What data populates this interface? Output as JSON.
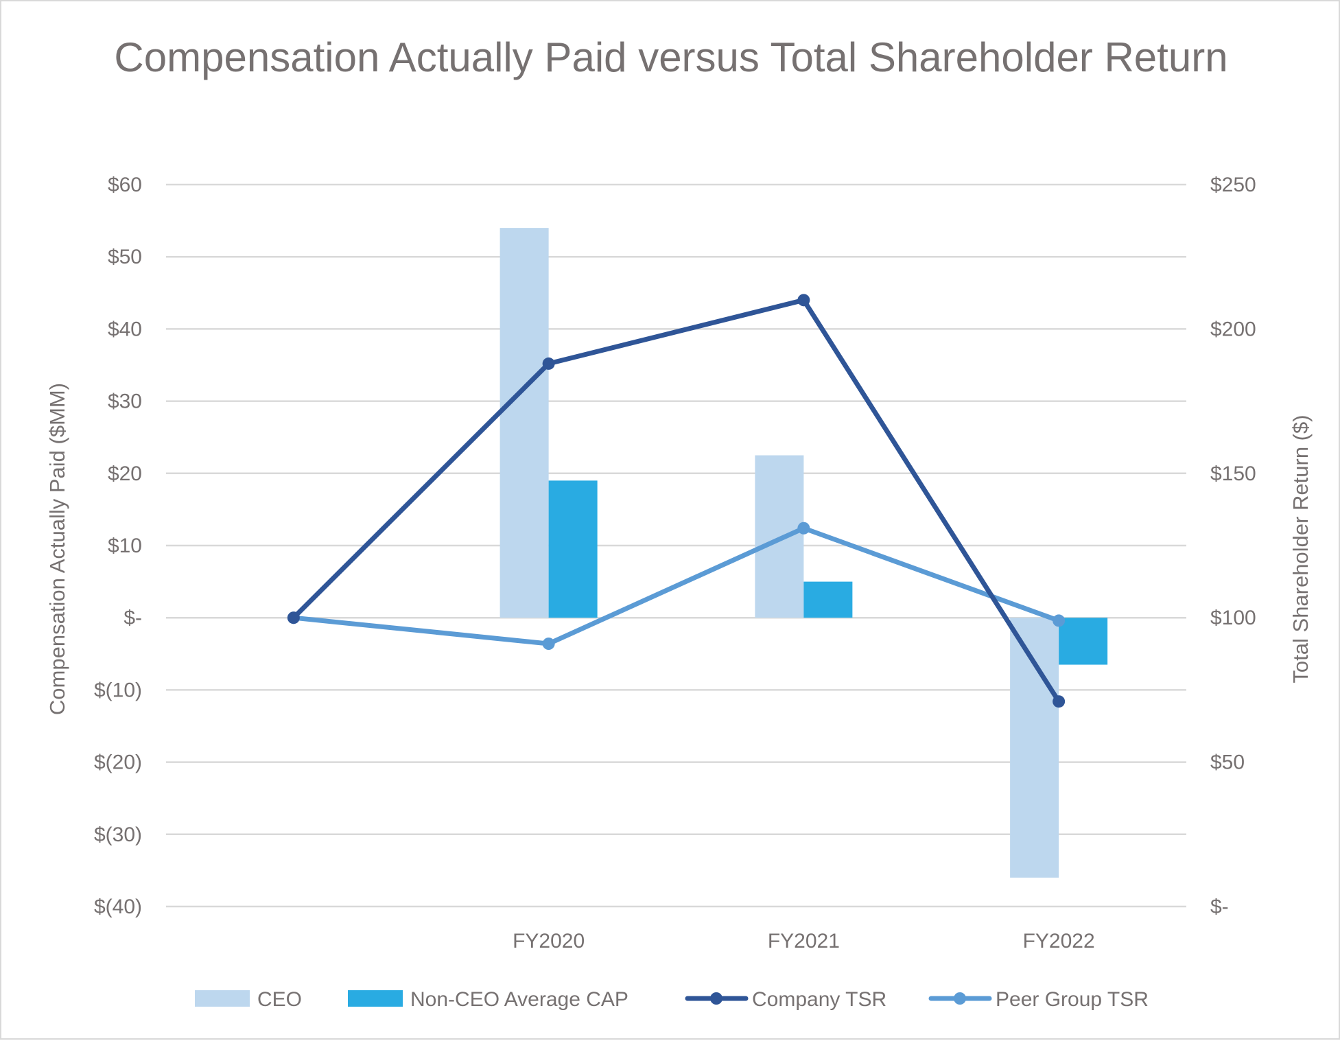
{
  "chart_data": {
    "type": "bar",
    "title": "Compensation Actually Paid versus Total Shareholder Return",
    "y_left_label": "Compensation Actually Paid ($MM)",
    "y_right_label": "Total Shareholder Return ($)",
    "y_left_range": [
      -40,
      60
    ],
    "y_right_range": [
      0,
      250
    ],
    "y_left_ticks": [
      "$60",
      "$50",
      "$40",
      "$30",
      "$20",
      "$10",
      "$-",
      "$(10)",
      "$(20)",
      "$(30)",
      "$(40)"
    ],
    "y_right_ticks": [
      "$250",
      "$200",
      "$150",
      "$100",
      "$50",
      "$-"
    ],
    "categories": [
      "",
      "FY2020",
      "FY2021",
      "FY2022"
    ],
    "bar_series": [
      {
        "name": "CEO",
        "color": "#bdd7ee",
        "values": [
          null,
          54,
          22.5,
          -36
        ]
      },
      {
        "name": "Non-CEO Average CAP",
        "color": "#29abe2",
        "values": [
          null,
          19,
          5,
          -6.5
        ]
      }
    ],
    "line_series": [
      {
        "name": "Company TSR",
        "color": "#2f5597",
        "axis": "right",
        "values": [
          100,
          188,
          210,
          71
        ]
      },
      {
        "name": "Peer Group TSR",
        "color": "#5b9bd5",
        "axis": "right",
        "values": [
          100,
          91,
          131,
          99
        ]
      }
    ],
    "grid": true,
    "legend_position": "bottom"
  }
}
